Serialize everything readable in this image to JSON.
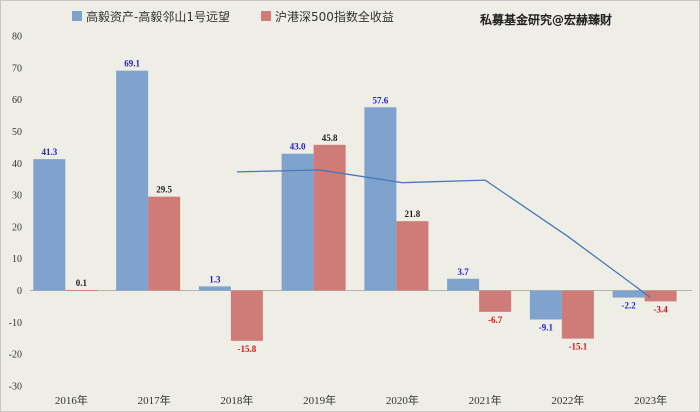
{
  "chart_data": {
    "type": "bar",
    "title": "私募基金研究@宏赫臻财",
    "categories": [
      "2016年",
      "2017年",
      "2018年",
      "2019年",
      "2020年",
      "2021年",
      "2022年",
      "2023年"
    ],
    "ylim": [
      -30,
      80
    ],
    "yticks": [
      -30,
      -20,
      -10,
      0,
      10,
      20,
      30,
      40,
      50,
      60,
      70,
      80
    ],
    "series": [
      {
        "name": "高毅资产-高毅邻山1号远望",
        "color": "#7fa3cc",
        "label_color": "#2222cc",
        "values": [
          41.3,
          69.1,
          1.3,
          43.0,
          57.6,
          3.7,
          -9.1,
          -2.2
        ],
        "labels": [
          "41.3",
          "69.1",
          "1.3",
          "43.0",
          "57.6",
          "3.7",
          "-9.1",
          "-2.2"
        ]
      },
      {
        "name": "沪港深500指数全收益",
        "color": "#cf7b77",
        "pos_label_color": "#222222",
        "neg_label_color": "#dd1111",
        "values": [
          0.1,
          29.5,
          -15.8,
          45.8,
          21.8,
          -6.7,
          -15.1,
          -3.4
        ],
        "labels": [
          "0.1",
          "29.5",
          "-15.8",
          "45.8",
          "21.8",
          "-6.7",
          "-15.1",
          "-3.4"
        ]
      }
    ],
    "trend_line": {
      "color": "#4a78b8",
      "values": [
        37.3,
        37.9,
        33.9,
        34.7,
        17.0,
        -2.2
      ]
    }
  }
}
